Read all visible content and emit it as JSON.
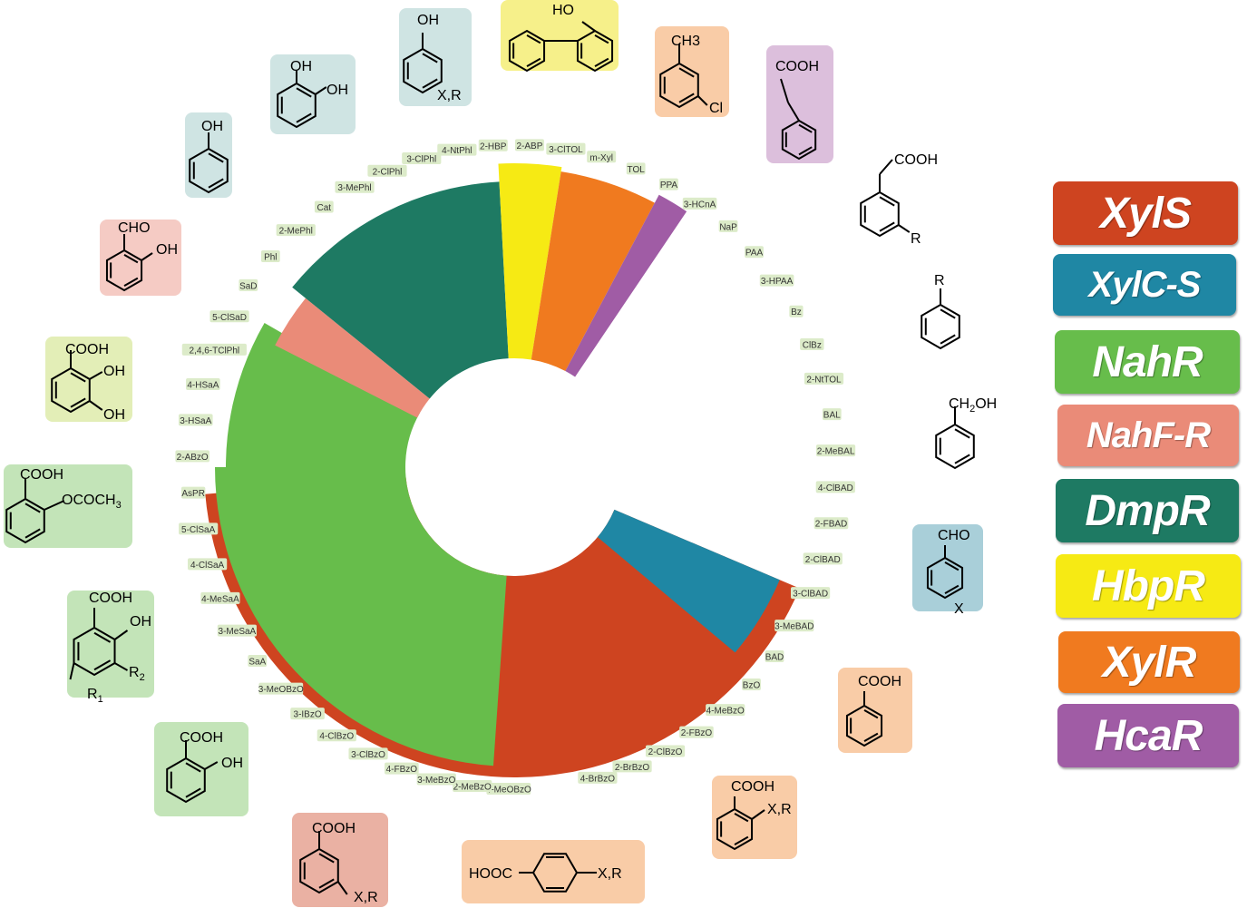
{
  "legend": [
    {
      "label": "XylS",
      "color": "#ce4420"
    },
    {
      "label": "XylC-S",
      "color": "#1f87a4"
    },
    {
      "label": "NahR",
      "color": "#67bd4b"
    },
    {
      "label": "NahF-R",
      "color": "#ea8b78"
    },
    {
      "label": "DmpR",
      "color": "#1e7a63"
    },
    {
      "label": "HbpR",
      "color": "#f6ea14"
    },
    {
      "label": "XylR",
      "color": "#f07a1f"
    },
    {
      "label": "HcaR",
      "color": "#a05ca5"
    }
  ],
  "ring_labels": [
    "4-MeOBzO",
    "2-MeBzO",
    "3-MeBzO",
    "4-FBzO",
    "3-ClBzO",
    "4-ClBzO",
    "3-IBzO",
    "3-MeOBzO",
    "SaA",
    "3-MeSaA",
    "4-MeSaA",
    "4-ClSaA",
    "5-ClSaA",
    "AsPR",
    "2-ABzO",
    "3-HSaA",
    "4-HSaA",
    "2,4,6-TClPhl",
    "5-ClSaD",
    "SaD",
    "Phl",
    "2-MePhl",
    "Cat",
    "3-MePhl",
    "2-ClPhl",
    "3-ClPhl",
    "4-NtPhl",
    "2-HBP",
    "2-ABP",
    "3-ClTOL",
    "m-Xyl",
    "TOL",
    "PPA",
    "3-HCnA",
    "NaP",
    "PAA",
    "3-HPAA",
    "Bz",
    "ClBz",
    "2-NtTOL",
    "BAL",
    "2-MeBAL",
    "4-ClBAD",
    "2-FBAD",
    "2-ClBAD",
    "3-ClBAD",
    "3-MeBAD",
    "BAD",
    "BzO",
    "4-MeBzO",
    "2-FBzO",
    "2-ClBzO",
    "2-BrBzO",
    "4-BrBzO"
  ],
  "chem_labels": {
    "phenol": [
      "OH"
    ],
    "catechol": [
      "OH",
      "OH"
    ],
    "sub_phenol": [
      "OH",
      "X,R"
    ],
    "hydroxybiphenyl": [
      "HO"
    ],
    "chlorotoluene": [
      "CH3",
      "Cl"
    ],
    "phenylpropanoic": [
      "COOH"
    ],
    "phenylacetic": [
      "COOH",
      "R"
    ],
    "benzene": [
      "R"
    ],
    "benzyl_alcohol": [
      "CH2OH"
    ],
    "sub_benzaldehyde": [
      "CHO",
      "X"
    ],
    "benzoic": [
      "COOH"
    ],
    "ortho_benzoic": [
      "COOH",
      "X,R"
    ],
    "para_benzoic": [
      "HOOC",
      "X,R"
    ],
    "meta_benzoic": [
      "COOH",
      "X,R"
    ],
    "salicylic": [
      "COOH",
      "OH"
    ],
    "sub_salicylic": [
      "COOH",
      "OH",
      "R2",
      "R1"
    ],
    "aspirin": [
      "COOH",
      "OCOCH3"
    ],
    "dihydroxybenzoic": [
      "COOH",
      "OH",
      "OH"
    ],
    "salicylaldehyde": [
      "CHO",
      "OH"
    ]
  }
}
